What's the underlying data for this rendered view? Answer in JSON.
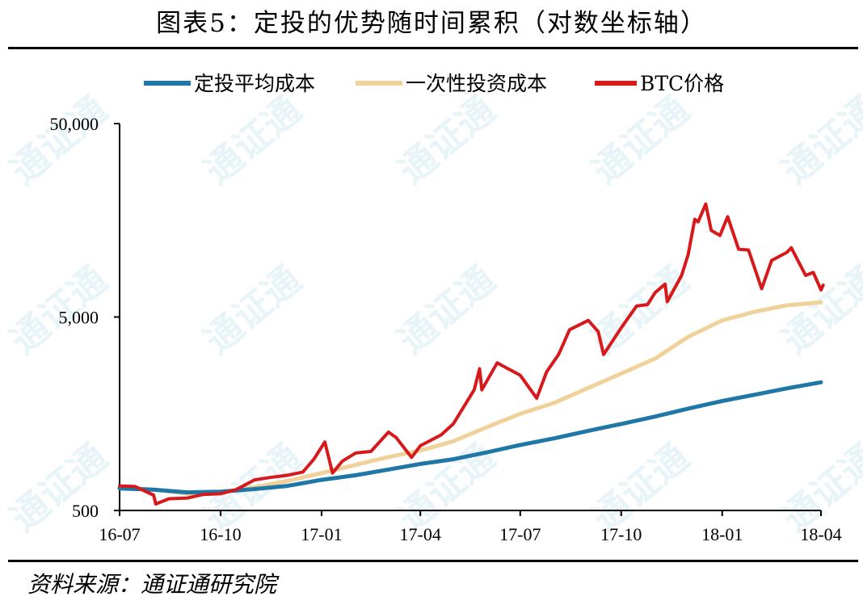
{
  "title": "图表5：定投的优势随时间累积（对数坐标轴）",
  "source": "资料来源：通证通研究院",
  "watermark": "通证通",
  "chart_data": {
    "type": "line",
    "yscale": "log",
    "ylim": [
      500,
      50000
    ],
    "yticks": [
      500,
      5000,
      50000
    ],
    "ytick_labels": [
      "500",
      "5,000",
      "50,000"
    ],
    "xlim": [
      "2016-07",
      "2018-04"
    ],
    "xtick_labels": [
      "16-07",
      "16-10",
      "17-01",
      "17-04",
      "17-07",
      "17-10",
      "18-01",
      "18-04"
    ],
    "legend": "top",
    "grid": false,
    "series": [
      {
        "name": "定投平均成本",
        "color": "#1f77a8",
        "points": [
          [
            "2016-07-01",
            650
          ],
          [
            "2016-08-01",
            640
          ],
          [
            "2016-09-01",
            620
          ],
          [
            "2016-10-01",
            625
          ],
          [
            "2016-11-01",
            645
          ],
          [
            "2016-12-01",
            670
          ],
          [
            "2017-01-01",
            720
          ],
          [
            "2017-02-01",
            760
          ],
          [
            "2017-03-01",
            810
          ],
          [
            "2017-04-01",
            870
          ],
          [
            "2017-05-01",
            920
          ],
          [
            "2017-06-01",
            1000
          ],
          [
            "2017-07-01",
            1090
          ],
          [
            "2017-08-01",
            1180
          ],
          [
            "2017-09-01",
            1290
          ],
          [
            "2017-10-01",
            1400
          ],
          [
            "2017-11-01",
            1530
          ],
          [
            "2017-12-01",
            1680
          ],
          [
            "2018-01-01",
            1840
          ],
          [
            "2018-02-01",
            1990
          ],
          [
            "2018-03-01",
            2140
          ],
          [
            "2018-04-01",
            2300
          ]
        ]
      },
      {
        "name": "一次性投资成本",
        "color": "#f0d19a",
        "points": [
          [
            "2016-07-01",
            660
          ],
          [
            "2016-08-01",
            640
          ],
          [
            "2016-09-01",
            610
          ],
          [
            "2016-10-01",
            620
          ],
          [
            "2016-11-01",
            660
          ],
          [
            "2016-12-01",
            710
          ],
          [
            "2017-01-01",
            780
          ],
          [
            "2017-02-01",
            860
          ],
          [
            "2017-03-01",
            940
          ],
          [
            "2017-04-01",
            1020
          ],
          [
            "2017-05-01",
            1140
          ],
          [
            "2017-06-01",
            1350
          ],
          [
            "2017-07-01",
            1580
          ],
          [
            "2017-08-01",
            1800
          ],
          [
            "2017-09-01",
            2150
          ],
          [
            "2017-10-01",
            2550
          ],
          [
            "2017-11-01",
            3050
          ],
          [
            "2017-12-01",
            3950
          ],
          [
            "2018-01-01",
            4800
          ],
          [
            "2018-02-01",
            5350
          ],
          [
            "2018-03-01",
            5750
          ],
          [
            "2018-04-01",
            5950
          ]
        ]
      },
      {
        "name": "BTC价格",
        "color": "#d7191c",
        "points": [
          [
            "2016-07-01",
            670
          ],
          [
            "2016-07-15",
            665
          ],
          [
            "2016-08-01",
            600
          ],
          [
            "2016-08-03",
            540
          ],
          [
            "2016-08-15",
            575
          ],
          [
            "2016-09-01",
            580
          ],
          [
            "2016-09-15",
            605
          ],
          [
            "2016-10-01",
            610
          ],
          [
            "2016-10-15",
            640
          ],
          [
            "2016-11-01",
            720
          ],
          [
            "2016-11-15",
            740
          ],
          [
            "2016-12-01",
            760
          ],
          [
            "2016-12-15",
            790
          ],
          [
            "2016-12-25",
            920
          ],
          [
            "2017-01-04",
            1130
          ],
          [
            "2017-01-11",
            780
          ],
          [
            "2017-01-20",
            900
          ],
          [
            "2017-02-01",
            990
          ],
          [
            "2017-02-15",
            1010
          ],
          [
            "2017-03-03",
            1270
          ],
          [
            "2017-03-10",
            1190
          ],
          [
            "2017-03-24",
            940
          ],
          [
            "2017-04-01",
            1080
          ],
          [
            "2017-04-20",
            1230
          ],
          [
            "2017-05-01",
            1400
          ],
          [
            "2017-05-20",
            2100
          ],
          [
            "2017-05-25",
            2700
          ],
          [
            "2017-05-27",
            2100
          ],
          [
            "2017-06-10",
            2900
          ],
          [
            "2017-06-20",
            2700
          ],
          [
            "2017-07-01",
            2500
          ],
          [
            "2017-07-16",
            1900
          ],
          [
            "2017-07-25",
            2600
          ],
          [
            "2017-08-05",
            3200
          ],
          [
            "2017-08-15",
            4300
          ],
          [
            "2017-09-01",
            4800
          ],
          [
            "2017-09-10",
            4200
          ],
          [
            "2017-09-15",
            3200
          ],
          [
            "2017-09-25",
            3900
          ],
          [
            "2017-10-01",
            4400
          ],
          [
            "2017-10-15",
            5700
          ],
          [
            "2017-10-25",
            5800
          ],
          [
            "2017-11-01",
            6700
          ],
          [
            "2017-11-10",
            7400
          ],
          [
            "2017-11-12",
            6000
          ],
          [
            "2017-11-25",
            8200
          ],
          [
            "2017-12-01",
            10500
          ],
          [
            "2017-12-07",
            16000
          ],
          [
            "2017-12-10",
            15500
          ],
          [
            "2017-12-17",
            19200
          ],
          [
            "2017-12-22",
            14000
          ],
          [
            "2017-12-30",
            13200
          ],
          [
            "2018-01-06",
            16500
          ],
          [
            "2018-01-16",
            11200
          ],
          [
            "2018-01-25",
            11100
          ],
          [
            "2018-02-06",
            7000
          ],
          [
            "2018-02-15",
            9800
          ],
          [
            "2018-03-01",
            10800
          ],
          [
            "2018-03-05",
            11400
          ],
          [
            "2018-03-18",
            8200
          ],
          [
            "2018-03-25",
            8500
          ],
          [
            "2018-04-01",
            6900
          ],
          [
            "2018-04-03",
            7300
          ]
        ]
      }
    ]
  }
}
